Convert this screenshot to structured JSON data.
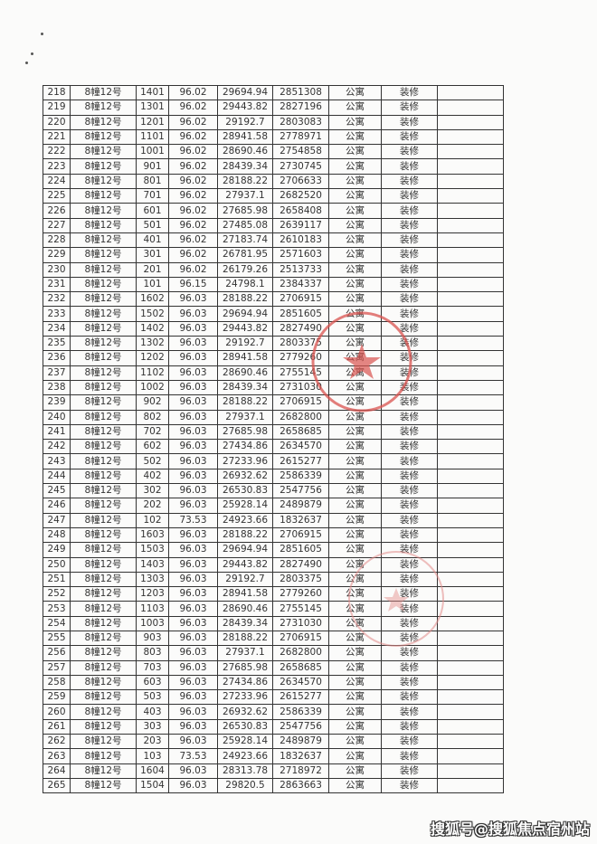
{
  "table": {
    "rows": [
      [
        "218",
        "8幢12号",
        "1401",
        "96.02",
        "29694.94",
        "2851308",
        "公寓",
        "装修",
        ""
      ],
      [
        "219",
        "8幢12号",
        "1301",
        "96.02",
        "29443.82",
        "2827196",
        "公寓",
        "装修",
        ""
      ],
      [
        "220",
        "8幢12号",
        "1201",
        "96.02",
        "29192.7",
        "2803083",
        "公寓",
        "装修",
        ""
      ],
      [
        "221",
        "8幢12号",
        "1101",
        "96.02",
        "28941.58",
        "2778971",
        "公寓",
        "装修",
        ""
      ],
      [
        "222",
        "8幢12号",
        "1001",
        "96.02",
        "28690.46",
        "2754858",
        "公寓",
        "装修",
        ""
      ],
      [
        "223",
        "8幢12号",
        "901",
        "96.02",
        "28439.34",
        "2730745",
        "公寓",
        "装修",
        ""
      ],
      [
        "224",
        "8幢12号",
        "801",
        "96.02",
        "28188.22",
        "2706633",
        "公寓",
        "装修",
        ""
      ],
      [
        "225",
        "8幢12号",
        "701",
        "96.02",
        "27937.1",
        "2682520",
        "公寓",
        "装修",
        ""
      ],
      [
        "226",
        "8幢12号",
        "601",
        "96.02",
        "27685.98",
        "2658408",
        "公寓",
        "装修",
        ""
      ],
      [
        "227",
        "8幢12号",
        "501",
        "96.02",
        "27485.08",
        "2639117",
        "公寓",
        "装修",
        ""
      ],
      [
        "228",
        "8幢12号",
        "401",
        "96.02",
        "27183.74",
        "2610183",
        "公寓",
        "装修",
        ""
      ],
      [
        "229",
        "8幢12号",
        "301",
        "96.02",
        "26781.95",
        "2571603",
        "公寓",
        "装修",
        ""
      ],
      [
        "230",
        "8幢12号",
        "201",
        "96.02",
        "26179.26",
        "2513733",
        "公寓",
        "装修",
        ""
      ],
      [
        "231",
        "8幢12号",
        "101",
        "96.15",
        "24798.1",
        "2384337",
        "公寓",
        "装修",
        ""
      ],
      [
        "232",
        "8幢12号",
        "1602",
        "96.03",
        "28188.22",
        "2706915",
        "公寓",
        "装修",
        ""
      ],
      [
        "233",
        "8幢12号",
        "1502",
        "96.03",
        "29694.94",
        "2851605",
        "公寓",
        "装修",
        ""
      ],
      [
        "234",
        "8幢12号",
        "1402",
        "96.03",
        "29443.82",
        "2827490",
        "公寓",
        "装修",
        ""
      ],
      [
        "235",
        "8幢12号",
        "1302",
        "96.03",
        "29192.7",
        "2803375",
        "公寓",
        "装修",
        ""
      ],
      [
        "236",
        "8幢12号",
        "1202",
        "96.03",
        "28941.58",
        "2779260",
        "公寓",
        "装修",
        ""
      ],
      [
        "237",
        "8幢12号",
        "1102",
        "96.03",
        "28690.46",
        "2755145",
        "公寓",
        "装修",
        ""
      ],
      [
        "238",
        "8幢12号",
        "1002",
        "96.03",
        "28439.34",
        "2731030",
        "公寓",
        "装修",
        ""
      ],
      [
        "239",
        "8幢12号",
        "902",
        "96.03",
        "28188.22",
        "2706915",
        "公寓",
        "装修",
        ""
      ],
      [
        "240",
        "8幢12号",
        "802",
        "96.03",
        "27937.1",
        "2682800",
        "公寓",
        "装修",
        ""
      ],
      [
        "241",
        "8幢12号",
        "702",
        "96.03",
        "27685.98",
        "2658685",
        "公寓",
        "装修",
        ""
      ],
      [
        "242",
        "8幢12号",
        "602",
        "96.03",
        "27434.86",
        "2634570",
        "公寓",
        "装修",
        ""
      ],
      [
        "243",
        "8幢12号",
        "502",
        "96.03",
        "27233.96",
        "2615277",
        "公寓",
        "装修",
        ""
      ],
      [
        "244",
        "8幢12号",
        "402",
        "96.03",
        "26932.62",
        "2586339",
        "公寓",
        "装修",
        ""
      ],
      [
        "245",
        "8幢12号",
        "302",
        "96.03",
        "26530.83",
        "2547756",
        "公寓",
        "装修",
        ""
      ],
      [
        "246",
        "8幢12号",
        "202",
        "96.03",
        "25928.14",
        "2489879",
        "公寓",
        "装修",
        ""
      ],
      [
        "247",
        "8幢12号",
        "102",
        "73.53",
        "24923.66",
        "1832637",
        "公寓",
        "装修",
        ""
      ],
      [
        "248",
        "8幢12号",
        "1603",
        "96.03",
        "28188.22",
        "2706915",
        "公寓",
        "装修",
        ""
      ],
      [
        "249",
        "8幢12号",
        "1503",
        "96.03",
        "29694.94",
        "2851605",
        "公寓",
        "装修",
        ""
      ],
      [
        "250",
        "8幢12号",
        "1403",
        "96.03",
        "29443.82",
        "2827490",
        "公寓",
        "装修",
        ""
      ],
      [
        "251",
        "8幢12号",
        "1303",
        "96.03",
        "29192.7",
        "2803375",
        "公寓",
        "装修",
        ""
      ],
      [
        "252",
        "8幢12号",
        "1203",
        "96.03",
        "28941.58",
        "2779260",
        "公寓",
        "装修",
        ""
      ],
      [
        "253",
        "8幢12号",
        "1103",
        "96.03",
        "28690.46",
        "2755145",
        "公寓",
        "装修",
        ""
      ],
      [
        "254",
        "8幢12号",
        "1003",
        "96.03",
        "28439.34",
        "2731030",
        "公寓",
        "装修",
        ""
      ],
      [
        "255",
        "8幢12号",
        "903",
        "96.03",
        "28188.22",
        "2706915",
        "公寓",
        "装修",
        ""
      ],
      [
        "256",
        "8幢12号",
        "803",
        "96.03",
        "27937.1",
        "2682800",
        "公寓",
        "装修",
        ""
      ],
      [
        "257",
        "8幢12号",
        "703",
        "96.03",
        "27685.98",
        "2658685",
        "公寓",
        "装修",
        ""
      ],
      [
        "258",
        "8幢12号",
        "603",
        "96.03",
        "27434.86",
        "2634570",
        "公寓",
        "装修",
        ""
      ],
      [
        "259",
        "8幢12号",
        "503",
        "96.03",
        "27233.96",
        "2615277",
        "公寓",
        "装修",
        ""
      ],
      [
        "260",
        "8幢12号",
        "403",
        "96.03",
        "26932.62",
        "2586339",
        "公寓",
        "装修",
        ""
      ],
      [
        "261",
        "8幢12号",
        "303",
        "96.03",
        "26530.83",
        "2547756",
        "公寓",
        "装修",
        ""
      ],
      [
        "262",
        "8幢12号",
        "203",
        "96.03",
        "25928.14",
        "2489879",
        "公寓",
        "装修",
        ""
      ],
      [
        "263",
        "8幢12号",
        "103",
        "73.53",
        "24923.66",
        "1832637",
        "公寓",
        "装修",
        ""
      ],
      [
        "264",
        "8幢12号",
        "1604",
        "96.03",
        "28313.78",
        "2718972",
        "公寓",
        "装修",
        ""
      ],
      [
        "265",
        "8幢12号",
        "1504",
        "96.03",
        "29820.5",
        "2863663",
        "公寓",
        "装修",
        ""
      ]
    ]
  },
  "stamp_color": "#d9534f",
  "watermark": "搜狐号@搜狐焦点宿州站"
}
